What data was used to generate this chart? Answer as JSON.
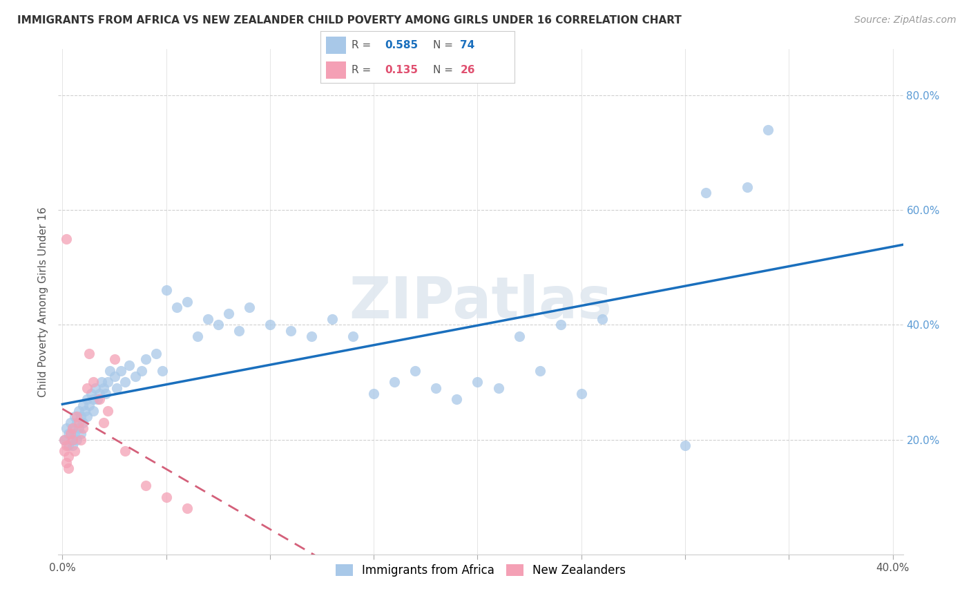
{
  "title": "IMMIGRANTS FROM AFRICA VS NEW ZEALANDER CHILD POVERTY AMONG GIRLS UNDER 16 CORRELATION CHART",
  "source": "Source: ZipAtlas.com",
  "ylabel": "Child Poverty Among Girls Under 16",
  "ytick_labels": [
    "20.0%",
    "40.0%",
    "60.0%",
    "80.0%"
  ],
  "ytick_values": [
    0.2,
    0.4,
    0.6,
    0.8
  ],
  "xlim": [
    -0.002,
    0.405
  ],
  "ylim": [
    0.0,
    0.88
  ],
  "color_blue": "#a8c8e8",
  "color_pink": "#f4a0b5",
  "trendline_blue": "#1a6fbd",
  "trendline_pink": "#d4607a",
  "watermark": "ZIPatlas",
  "legend_label1": "Immigrants from Africa",
  "legend_label2": "New Zealanders",
  "blue_x": [
    0.001,
    0.002,
    0.003,
    0.003,
    0.004,
    0.004,
    0.005,
    0.005,
    0.005,
    0.006,
    0.006,
    0.007,
    0.007,
    0.008,
    0.008,
    0.009,
    0.009,
    0.01,
    0.01,
    0.011,
    0.012,
    0.012,
    0.013,
    0.014,
    0.015,
    0.015,
    0.016,
    0.017,
    0.018,
    0.019,
    0.02,
    0.021,
    0.022,
    0.023,
    0.025,
    0.026,
    0.028,
    0.03,
    0.032,
    0.035,
    0.038,
    0.04,
    0.045,
    0.048,
    0.05,
    0.055,
    0.06,
    0.065,
    0.07,
    0.075,
    0.08,
    0.085,
    0.09,
    0.1,
    0.11,
    0.12,
    0.13,
    0.14,
    0.15,
    0.16,
    0.17,
    0.18,
    0.19,
    0.2,
    0.21,
    0.22,
    0.23,
    0.24,
    0.25,
    0.26,
    0.3,
    0.31,
    0.33,
    0.34
  ],
  "blue_y": [
    0.2,
    0.22,
    0.19,
    0.21,
    0.21,
    0.23,
    0.2,
    0.22,
    0.19,
    0.24,
    0.21,
    0.23,
    0.2,
    0.25,
    0.22,
    0.21,
    0.24,
    0.26,
    0.23,
    0.25,
    0.27,
    0.24,
    0.26,
    0.28,
    0.27,
    0.25,
    0.29,
    0.27,
    0.28,
    0.3,
    0.29,
    0.28,
    0.3,
    0.32,
    0.31,
    0.29,
    0.32,
    0.3,
    0.33,
    0.31,
    0.32,
    0.34,
    0.35,
    0.32,
    0.46,
    0.43,
    0.44,
    0.38,
    0.41,
    0.4,
    0.42,
    0.39,
    0.43,
    0.4,
    0.39,
    0.38,
    0.41,
    0.38,
    0.28,
    0.3,
    0.32,
    0.29,
    0.27,
    0.3,
    0.29,
    0.38,
    0.32,
    0.4,
    0.28,
    0.41,
    0.19,
    0.63,
    0.64,
    0.74
  ],
  "pink_x": [
    0.001,
    0.001,
    0.002,
    0.002,
    0.003,
    0.003,
    0.004,
    0.005,
    0.005,
    0.006,
    0.007,
    0.008,
    0.009,
    0.01,
    0.012,
    0.013,
    0.015,
    0.018,
    0.02,
    0.022,
    0.025,
    0.03,
    0.04,
    0.05,
    0.06,
    0.002
  ],
  "pink_y": [
    0.2,
    0.18,
    0.16,
    0.19,
    0.17,
    0.15,
    0.21,
    0.2,
    0.22,
    0.18,
    0.24,
    0.23,
    0.2,
    0.22,
    0.29,
    0.35,
    0.3,
    0.27,
    0.23,
    0.25,
    0.34,
    0.18,
    0.12,
    0.1,
    0.08,
    0.55
  ],
  "xticks": [
    0.0,
    0.05,
    0.1,
    0.15,
    0.2,
    0.25,
    0.3,
    0.35,
    0.4
  ]
}
